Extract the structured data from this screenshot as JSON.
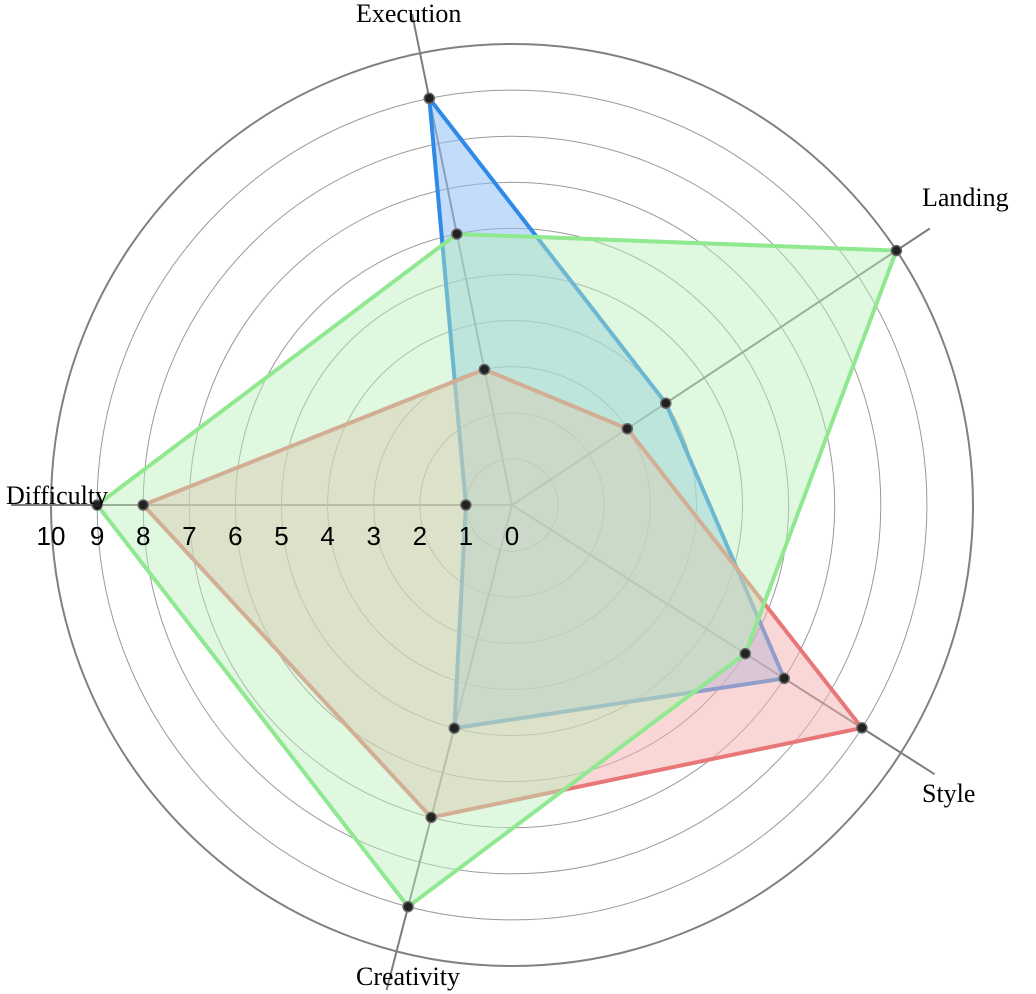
{
  "chart_data": {
    "type": "radar",
    "axes": [
      "Execution",
      "Landing",
      "Style",
      "Creativity",
      "Difficulty"
    ],
    "ticks": [
      "10",
      "9",
      "8",
      "7",
      "6",
      "5",
      "4",
      "3",
      "2",
      "1",
      "0"
    ],
    "range": [
      0,
      10
    ],
    "grid": true,
    "series": [
      {
        "values": [
          9,
          4,
          7,
          5,
          1
        ],
        "color": "#2e8ae6",
        "fill": "#8fbff5",
        "fill_opacity": 0.55
      },
      {
        "values": [
          3,
          3,
          9,
          7,
          8
        ],
        "color": "#e87878",
        "fill": "#f3b0b0",
        "fill_opacity": 0.5
      },
      {
        "values": [
          6,
          10,
          6,
          9,
          9
        ],
        "color": "#90e890",
        "fill": "#b8f0b8",
        "fill_opacity": 0.45
      }
    ]
  }
}
